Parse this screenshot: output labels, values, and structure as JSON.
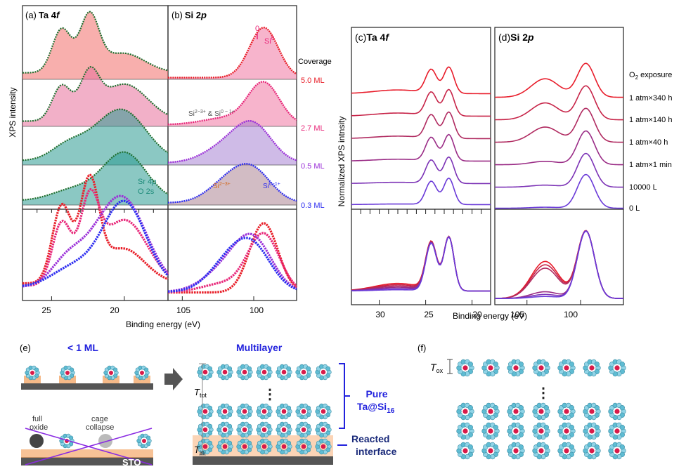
{
  "panels": {
    "a": {
      "label": "(a)",
      "title_main": "Ta 4",
      "title_italic": "f"
    },
    "b": {
      "label": "(b)",
      "title_main": "Si 2",
      "title_italic": "p"
    },
    "c": {
      "label": "(c)",
      "title_main": "Ta 4",
      "title_italic": "f"
    },
    "d": {
      "label": "(d)",
      "title_main": "Si 2",
      "title_italic": "p"
    },
    "e": {
      "label": "(e)"
    },
    "f": {
      "label": "(f)"
    }
  },
  "ab": {
    "ylabel": "XPS intensity",
    "xlabel": "Binding energy (eV)",
    "a_ticks": [
      "25",
      "20"
    ],
    "b_ticks": [
      "105",
      "100"
    ],
    "coverage_header": "Coverage",
    "coverages": [
      {
        "label": "5.0 ML",
        "color": "#e8202a"
      },
      {
        "label": "2.7 ML",
        "color": "#e8287a"
      },
      {
        "label": "0.5 ML",
        "color": "#9b30d8"
      },
      {
        "label": "0.3 ML",
        "color": "#2e2ef0"
      }
    ],
    "ann_si0_num": "0",
    "ann_si0": "Si",
    "ann_si0_sup": "0",
    "ann_mixed": "Si",
    "ann_mixed_sup1": "2−3+",
    "ann_mixed_mid": " & Si",
    "ann_mixed_sup2": "0 − 1+",
    "ann_si23": "Si",
    "ann_si23_sup": "2−3+",
    "ann_si01": "Si",
    "ann_si01_sup": "0−1+",
    "ann_sr_a": "Sr 4",
    "ann_sr_b": "p",
    "ann_o2s": "O 2s"
  },
  "cd": {
    "ylabel": "Normalized XPS intnsity",
    "xlabel": "Binding energy (eV)",
    "c_ticks": [
      "30",
      "25",
      "20"
    ],
    "d_ticks": [
      "105",
      "100"
    ],
    "exposure_header_a": "O",
    "exposure_header_sub": "2",
    "exposure_header_b": " exposure",
    "exposures": [
      {
        "label": "1 atm×340 h",
        "color": "#e81c2a"
      },
      {
        "label": "1 atm×140 h",
        "color": "#c72448"
      },
      {
        "label": "1 atm×40 h",
        "color": "#b02a60"
      },
      {
        "label": "1 atm×1 min",
        "color": "#9a2c86"
      },
      {
        "label": "10000 L",
        "color": "#7c33b6"
      },
      {
        "label": "0 L",
        "color": "#6a3ad8"
      }
    ]
  },
  "e": {
    "sub_ml": "< 1 ML",
    "multilayer": "Multilayer",
    "full_oxide": "full\noxide",
    "cage_collapse": "cage\ncollapse",
    "sto": "STO",
    "t_tot": "T",
    "t_tot_sub": "tot",
    "t_in": "T",
    "t_in_sub": "in",
    "pure_a": "Pure",
    "pure_b": "Ta@Si",
    "pure_sub": "16",
    "reacted_a": "Reacted",
    "reacted_b": "interface",
    "dots": "⋮"
  },
  "f": {
    "t_ox": "T",
    "t_ox_sub": "ox",
    "dots": "⋮"
  },
  "chart_data": [
    {
      "type": "line",
      "panel": "a",
      "title": "Ta 4f",
      "xlabel": "Binding energy (eV)",
      "ylabel": "XPS intensity",
      "xlim": [
        27,
        17
      ],
      "x_reversed": true,
      "series": [
        {
          "name": "5.0 ML",
          "peaks_eV": [
            24.3,
            22.4,
            20.1
          ]
        },
        {
          "name": "2.7 ML",
          "peaks_eV": [
            24.3,
            22.4,
            20.0
          ]
        },
        {
          "name": "0.5 ML",
          "peaks_eV": [
            23.5,
            20.0
          ]
        },
        {
          "name": "0.3 ML",
          "peaks_eV": [
            20.0
          ]
        }
      ]
    },
    {
      "type": "line",
      "panel": "b",
      "title": "Si 2p",
      "xlabel": "Binding energy (eV)",
      "xlim": [
        106,
        97
      ],
      "x_reversed": true,
      "series": [
        {
          "name": "5.0 ML",
          "peaks_eV": [
            99.3
          ]
        },
        {
          "name": "2.7 ML",
          "peaks_eV": [
            99.3
          ]
        },
        {
          "name": "0.5 ML",
          "peaks_eV": [
            102.0,
            100.0
          ]
        },
        {
          "name": "0.3 ML",
          "peaks_eV": [
            101.8,
            100.0
          ]
        }
      ]
    },
    {
      "type": "line",
      "panel": "c",
      "title": "Ta 4f",
      "xlabel": "Binding energy (eV)",
      "ylabel": "Normalized XPS intnsity",
      "xlim": [
        33,
        18
      ],
      "x_reversed": true,
      "series": [
        {
          "name": "1 atm×340 h",
          "peaks_eV": [
            24.4,
            22.5
          ]
        },
        {
          "name": "1 atm×140 h",
          "peaks_eV": [
            24.4,
            22.5
          ]
        },
        {
          "name": "1 atm×40 h",
          "peaks_eV": [
            24.4,
            22.5
          ]
        },
        {
          "name": "1 atm×1 min",
          "peaks_eV": [
            24.4,
            22.5
          ]
        },
        {
          "name": "10000 L",
          "peaks_eV": [
            24.4,
            22.5
          ]
        },
        {
          "name": "0 L",
          "peaks_eV": [
            24.4,
            22.5
          ]
        }
      ]
    },
    {
      "type": "line",
      "panel": "d",
      "title": "Si 2p",
      "xlabel": "Binding energy (eV)",
      "xlim": [
        108,
        96
      ],
      "x_reversed": true,
      "series": [
        {
          "name": "1 atm×340 h",
          "peaks_eV": [
            103.3,
            99.5
          ]
        },
        {
          "name": "1 atm×140 h",
          "peaks_eV": [
            103.3,
            99.5
          ]
        },
        {
          "name": "1 atm×40 h",
          "peaks_eV": [
            103.3,
            99.5
          ]
        },
        {
          "name": "1 atm×1 min",
          "peaks_eV": [
            99.5
          ]
        },
        {
          "name": "10000 L",
          "peaks_eV": [
            99.5
          ]
        },
        {
          "name": "0 L",
          "peaks_eV": [
            99.5
          ]
        }
      ]
    }
  ]
}
